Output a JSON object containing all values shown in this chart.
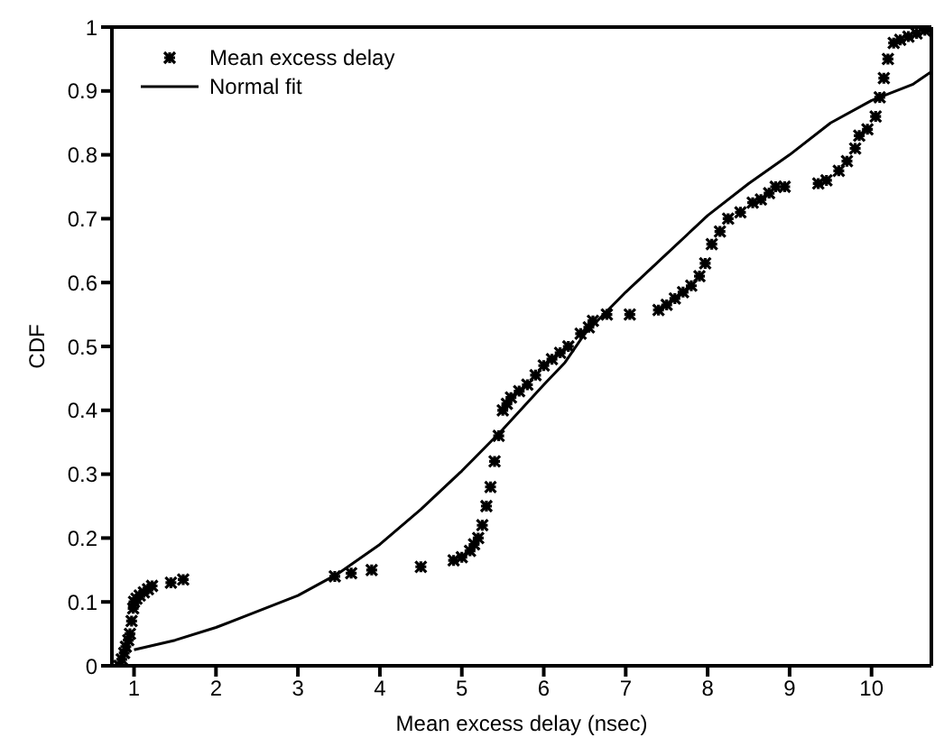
{
  "chart_data": {
    "type": "scatter",
    "xlabel": "Mean excess delay (nsec)",
    "ylabel": "CDF",
    "xlim": [
      0.73,
      10.73
    ],
    "xticks": [
      1,
      2,
      3,
      4,
      5,
      6,
      7,
      8,
      9,
      10
    ],
    "ylim": [
      0,
      1
    ],
    "yticks": [
      0,
      0.1,
      0.2,
      0.3,
      0.4,
      0.5,
      0.6,
      0.7,
      0.8,
      0.9,
      1
    ],
    "legend": "top left",
    "marker": "cross",
    "series": [
      {
        "name": "Mean excess delay",
        "color": "#000000",
        "x": [
          0.82,
          0.85,
          0.88,
          0.9,
          0.93,
          0.95,
          0.97,
          0.99,
          1.0,
          1.03,
          1.07,
          1.12,
          1.17,
          1.22,
          1.45,
          1.6,
          3.45,
          3.65,
          3.9,
          4.5,
          4.9,
          5.0,
          5.1,
          5.15,
          5.2,
          5.25,
          5.3,
          5.35,
          5.4,
          5.45,
          5.5,
          5.55,
          5.6,
          5.7,
          5.8,
          5.9,
          6.0,
          6.1,
          6.2,
          6.3,
          6.45,
          6.55,
          6.6,
          6.77,
          7.05,
          7.4,
          7.5,
          7.6,
          7.7,
          7.8,
          7.9,
          7.97,
          8.05,
          8.15,
          8.25,
          8.4,
          8.55,
          8.65,
          8.75,
          8.83,
          8.94,
          9.35,
          9.45,
          9.6,
          9.7,
          9.8,
          9.85,
          9.95,
          10.05,
          10.1,
          10.15,
          10.2,
          10.27,
          10.35,
          10.45,
          10.55,
          10.65,
          10.7
        ],
        "values": [
          0.0,
          0.01,
          0.02,
          0.03,
          0.04,
          0.05,
          0.07,
          0.09,
          0.1,
          0.105,
          0.11,
          0.115,
          0.12,
          0.125,
          0.13,
          0.135,
          0.14,
          0.145,
          0.15,
          0.155,
          0.165,
          0.17,
          0.18,
          0.19,
          0.2,
          0.22,
          0.25,
          0.28,
          0.32,
          0.36,
          0.4,
          0.41,
          0.42,
          0.43,
          0.44,
          0.455,
          0.47,
          0.48,
          0.49,
          0.5,
          0.52,
          0.53,
          0.54,
          0.55,
          0.55,
          0.557,
          0.565,
          0.575,
          0.585,
          0.595,
          0.61,
          0.63,
          0.66,
          0.68,
          0.7,
          0.71,
          0.725,
          0.73,
          0.74,
          0.75,
          0.75,
          0.755,
          0.76,
          0.775,
          0.79,
          0.81,
          0.83,
          0.84,
          0.86,
          0.89,
          0.92,
          0.95,
          0.975,
          0.98,
          0.985,
          0.99,
          0.995,
          1.0
        ]
      },
      {
        "name": "Normal fit",
        "type": "line",
        "color": "#000000",
        "marker": "none",
        "line_style": "solid",
        "x": [
          1.0,
          1.5,
          2,
          2.5,
          3,
          3.5,
          4,
          4.5,
          5,
          5.5,
          6,
          6.26,
          6.5,
          7,
          7.5,
          8,
          8.5,
          9,
          9.5,
          10,
          10.5,
          10.73
        ],
        "values": [
          0.025,
          0.04,
          0.06,
          0.085,
          0.11,
          0.145,
          0.19,
          0.245,
          0.305,
          0.37,
          0.44,
          0.475,
          0.52,
          0.585,
          0.645,
          0.705,
          0.755,
          0.8,
          0.85,
          0.885,
          0.91,
          0.93
        ]
      }
    ]
  }
}
